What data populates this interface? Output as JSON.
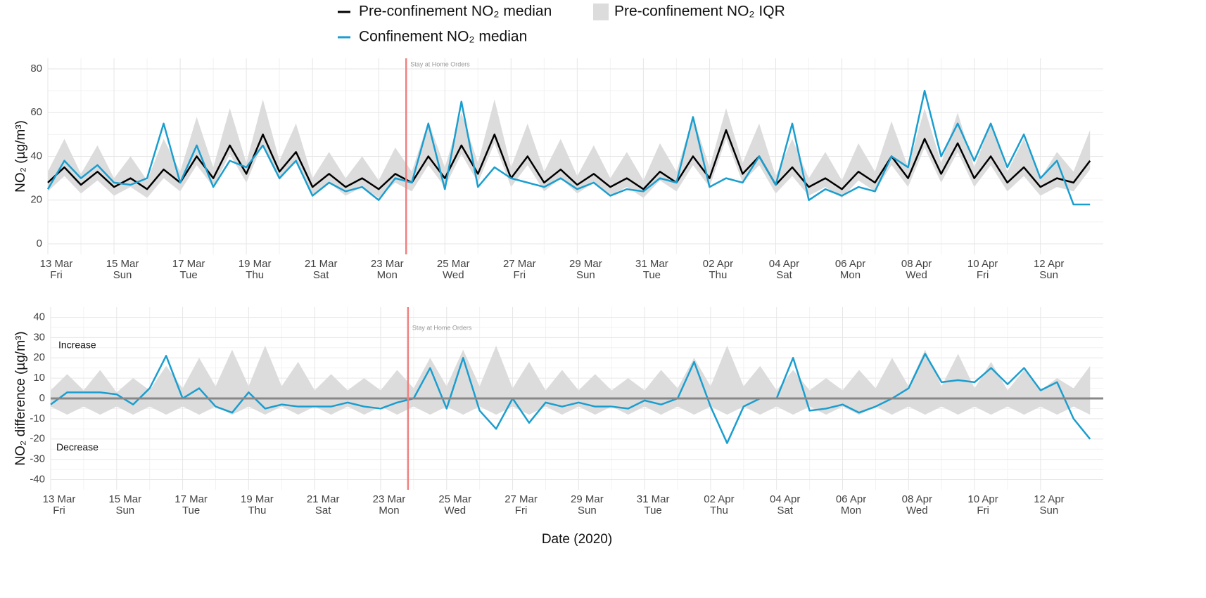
{
  "chart_data": [
    {
      "type": "line",
      "ylabel": "NO₂ (µg/m³)",
      "x": [
        0,
        0.5,
        1,
        1.5,
        2,
        2.5,
        3,
        3.5,
        4,
        4.5,
        5,
        5.5,
        6,
        6.5,
        7,
        7.5,
        8,
        8.5,
        9,
        9.5,
        10,
        10.5,
        11,
        11.5,
        12,
        12.5,
        13,
        13.5,
        14,
        14.5,
        15,
        15.5,
        16,
        16.5,
        17,
        17.5,
        18,
        18.5,
        19,
        19.5,
        20,
        20.5,
        21,
        21.5,
        22,
        22.5,
        23,
        23.5,
        24,
        24.5,
        25,
        25.5,
        26,
        26.5,
        27,
        27.5,
        28,
        28.5,
        29,
        29.5,
        30,
        30.5,
        31,
        31.5
      ],
      "xlim": [
        0,
        31.9
      ],
      "ylim": [
        -4.8,
        84.8
      ],
      "yticks": [
        0,
        20,
        40,
        60,
        80
      ],
      "grid": true,
      "xticks": [
        {
          "value": 0,
          "label": "13 Mar",
          "weekday": "Fri"
        },
        {
          "value": 2,
          "label": "15 Mar",
          "weekday": "Sun"
        },
        {
          "value": 4,
          "label": "17 Mar",
          "weekday": "Tue"
        },
        {
          "value": 6,
          "label": "19 Mar",
          "weekday": "Thu"
        },
        {
          "value": 8,
          "label": "21 Mar",
          "weekday": "Sat"
        },
        {
          "value": 10,
          "label": "23 Mar",
          "weekday": "Mon"
        },
        {
          "value": 12,
          "label": "25 Mar",
          "weekday": "Wed"
        },
        {
          "value": 14,
          "label": "27 Mar",
          "weekday": "Fri"
        },
        {
          "value": 16,
          "label": "29 Mar",
          "weekday": "Sun"
        },
        {
          "value": 18,
          "label": "31 Mar",
          "weekday": "Tue"
        },
        {
          "value": 20,
          "label": "02 Apr",
          "weekday": "Thu"
        },
        {
          "value": 22,
          "label": "04 Apr",
          "weekday": "Sat"
        },
        {
          "value": 24,
          "label": "06 Apr",
          "weekday": "Mon"
        },
        {
          "value": 26,
          "label": "08 Apr",
          "weekday": "Wed"
        },
        {
          "value": 28,
          "label": "10 Apr",
          "weekday": "Fri"
        },
        {
          "value": 30,
          "label": "12 Apr",
          "weekday": "Sun"
        }
      ],
      "vline": {
        "x": 10.83,
        "label": "Stay at Home Orders",
        "color": "#f08080"
      },
      "series": [
        {
          "name": "Pre-confinement NO₂ IQR",
          "color": "#dcdcdc",
          "low": [
            24,
            31,
            23,
            29,
            22,
            26,
            21,
            30,
            24,
            36,
            26,
            41,
            28,
            46,
            29,
            38,
            22,
            28,
            22,
            26,
            21,
            28,
            24,
            36,
            26,
            41,
            28,
            46,
            26,
            36,
            24,
            30,
            23,
            28,
            22,
            26,
            21,
            29,
            24,
            36,
            26,
            48,
            28,
            36,
            23,
            31,
            22,
            26,
            21,
            29,
            24,
            36,
            26,
            44,
            28,
            42,
            26,
            36,
            24,
            31,
            22,
            26,
            24,
            34
          ],
          "high": [
            33,
            48,
            32,
            45,
            30,
            40,
            29,
            48,
            33,
            58,
            35,
            62,
            37,
            66,
            38,
            55,
            30,
            42,
            30,
            40,
            29,
            44,
            33,
            56,
            35,
            60,
            37,
            66,
            35,
            55,
            33,
            48,
            31,
            45,
            30,
            42,
            29,
            46,
            33,
            58,
            35,
            62,
            37,
            55,
            31,
            48,
            30,
            42,
            29,
            46,
            33,
            56,
            35,
            62,
            37,
            60,
            35,
            55,
            33,
            48,
            30,
            42,
            33,
            52
          ]
        },
        {
          "name": "Pre-confinement NO₂ median",
          "color": "#000000",
          "values": [
            28,
            35,
            27,
            33,
            26,
            30,
            25,
            34,
            28,
            40,
            30,
            45,
            32,
            50,
            33,
            42,
            26,
            32,
            26,
            30,
            25,
            32,
            28,
            40,
            30,
            45,
            32,
            50,
            30,
            40,
            28,
            34,
            27,
            32,
            26,
            30,
            25,
            33,
            28,
            40,
            30,
            52,
            32,
            40,
            27,
            35,
            26,
            30,
            25,
            33,
            28,
            40,
            30,
            48,
            32,
            46,
            30,
            40,
            28,
            35,
            26,
            30,
            28,
            38
          ]
        },
        {
          "name": "Confinement NO₂ median",
          "color": "#1a9ecf",
          "values": [
            25,
            38,
            30,
            36,
            28,
            27,
            30,
            55,
            28,
            45,
            26,
            38,
            35,
            45,
            30,
            38,
            22,
            28,
            24,
            26,
            20,
            30,
            28,
            55,
            25,
            65,
            26,
            35,
            30,
            28,
            26,
            30,
            25,
            28,
            22,
            25,
            24,
            30,
            28,
            58,
            26,
            30,
            28,
            40,
            27,
            55,
            20,
            25,
            22,
            26,
            24,
            40,
            35,
            70,
            40,
            55,
            38,
            55,
            35,
            50,
            30,
            38,
            18,
            18
          ]
        }
      ]
    },
    {
      "type": "line",
      "ylabel": "NO₂ difference (µg/m³)",
      "xlabel": "Date (2020)",
      "x": [
        0,
        0.5,
        1,
        1.5,
        2,
        2.5,
        3,
        3.5,
        4,
        4.5,
        5,
        5.5,
        6,
        6.5,
        7,
        7.5,
        8,
        8.5,
        9,
        9.5,
        10,
        10.5,
        11,
        11.5,
        12,
        12.5,
        13,
        13.5,
        14,
        14.5,
        15,
        15.5,
        16,
        16.5,
        17,
        17.5,
        18,
        18.5,
        19,
        19.5,
        20,
        20.5,
        21,
        21.5,
        22,
        22.5,
        23,
        23.5,
        24,
        24.5,
        25,
        25.5,
        26,
        26.5,
        27,
        27.5,
        28,
        28.5,
        29,
        29.5,
        30,
        30.5,
        31,
        31.5
      ],
      "xlim": [
        0,
        31.9
      ],
      "ylim": [
        -45,
        45
      ],
      "yticks": [
        -40,
        -30,
        -20,
        -10,
        0,
        10,
        20,
        30,
        40
      ],
      "grid": true,
      "xticks": [
        {
          "value": 0,
          "label": "13 Mar",
          "weekday": "Fri"
        },
        {
          "value": 2,
          "label": "15 Mar",
          "weekday": "Sun"
        },
        {
          "value": 4,
          "label": "17 Mar",
          "weekday": "Tue"
        },
        {
          "value": 6,
          "label": "19 Mar",
          "weekday": "Thu"
        },
        {
          "value": 8,
          "label": "21 Mar",
          "weekday": "Sat"
        },
        {
          "value": 10,
          "label": "23 Mar",
          "weekday": "Mon"
        },
        {
          "value": 12,
          "label": "25 Mar",
          "weekday": "Wed"
        },
        {
          "value": 14,
          "label": "27 Mar",
          "weekday": "Fri"
        },
        {
          "value": 16,
          "label": "29 Mar",
          "weekday": "Sun"
        },
        {
          "value": 18,
          "label": "31 Mar",
          "weekday": "Tue"
        },
        {
          "value": 20,
          "label": "02 Apr",
          "weekday": "Thu"
        },
        {
          "value": 22,
          "label": "04 Apr",
          "weekday": "Sat"
        },
        {
          "value": 24,
          "label": "06 Apr",
          "weekday": "Mon"
        },
        {
          "value": 26,
          "label": "08 Apr",
          "weekday": "Wed"
        },
        {
          "value": 28,
          "label": "10 Apr",
          "weekday": "Fri"
        },
        {
          "value": 30,
          "label": "12 Apr",
          "weekday": "Sun"
        }
      ],
      "vline": {
        "x": 10.83,
        "label": "Stay at Home Orders",
        "color": "#f08080"
      },
      "hline": {
        "y": 0,
        "color": "#888888"
      },
      "annotations": [
        "Increase",
        "Decrease"
      ],
      "series": [
        {
          "color": "#dcdcdc",
          "low": [
            -4,
            -8,
            -4,
            -8,
            -4,
            -8,
            -4,
            -8,
            -4,
            -8,
            -4,
            -8,
            -4,
            -8,
            -4,
            -8,
            -4,
            -8,
            -4,
            -8,
            -4,
            -8,
            -4,
            -8,
            -4,
            -8,
            -4,
            -8,
            -4,
            -8,
            -4,
            -8,
            -4,
            -8,
            -4,
            -8,
            -4,
            -8,
            -4,
            -8,
            -4,
            -8,
            -4,
            -8,
            -4,
            -8,
            -4,
            -8,
            -4,
            -8,
            -4,
            -8,
            -4,
            -8,
            -4,
            -8,
            -4,
            -8,
            -4,
            -8,
            -4,
            -8,
            -4,
            -8
          ],
          "high": [
            4,
            12,
            4,
            14,
            3,
            10,
            4,
            16,
            5,
            20,
            6,
            24,
            6,
            26,
            6,
            18,
            4,
            12,
            4,
            10,
            4,
            14,
            5,
            20,
            6,
            24,
            6,
            26,
            5,
            18,
            4,
            14,
            4,
            12,
            4,
            10,
            4,
            14,
            5,
            20,
            6,
            26,
            6,
            16,
            4,
            14,
            4,
            10,
            4,
            14,
            5,
            20,
            6,
            24,
            6,
            22,
            5,
            18,
            4,
            14,
            4,
            10,
            5,
            16
          ]
        },
        {
          "color": "#1a9ecf",
          "values": [
            -3,
            3,
            3,
            3,
            2,
            -3,
            5,
            21,
            0,
            5,
            -4,
            -7,
            3,
            -5,
            -3,
            -4,
            -4,
            -4,
            -2,
            -4,
            -5,
            -2,
            0,
            15,
            -5,
            20,
            -6,
            -15,
            0,
            -12,
            -2,
            -4,
            -2,
            -4,
            -4,
            -5,
            -1,
            -3,
            0,
            18,
            -4,
            -22,
            -4,
            0,
            0,
            20,
            -6,
            -5,
            -3,
            -7,
            -4,
            0,
            5,
            22,
            8,
            9,
            8,
            15,
            7,
            15,
            4,
            8,
            -10,
            -20
          ]
        }
      ]
    }
  ]
}
